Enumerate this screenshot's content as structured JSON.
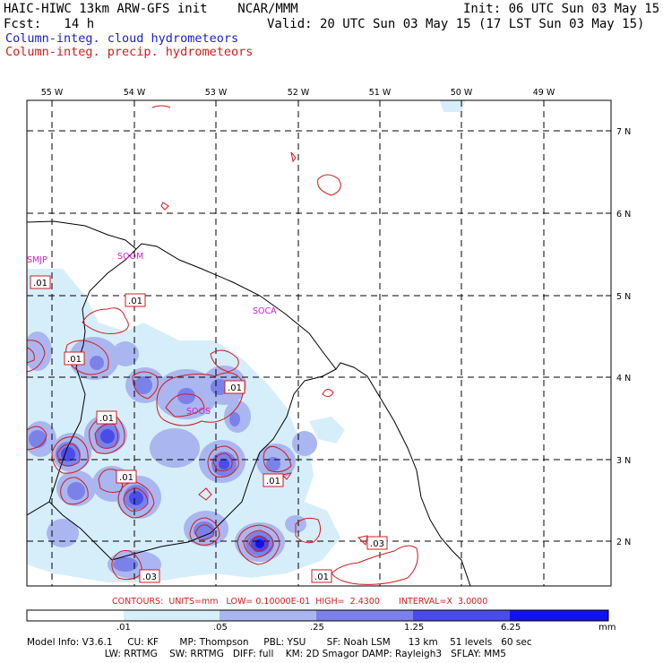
{
  "header": {
    "title": "HAIC-HIWC 13km ARW-GFS init    NCAR/MMM",
    "init": "Init: 06 UTC Sun 03 May 15",
    "fcst": "Fcst:   14 h",
    "valid": "Valid: 20 UTC Sun 03 May 15 (17 LST Sun 03 May 15)",
    "field1": "Column-integ. cloud hydrometeors",
    "field2": "Column-integ. precip. hydrometeors"
  },
  "axes": {
    "lon_labels": [
      "55 W",
      "54 W",
      "53 W",
      "52 W",
      "51 W",
      "50 W",
      "49 W"
    ],
    "lat_labels": [
      "7 N",
      "6 N",
      "5 N",
      "4 N",
      "3 N",
      "2 N"
    ]
  },
  "stations": [
    "SMJP",
    "SOOM",
    "SOCA",
    "SOOS"
  ],
  "contour_labels": [
    ".01",
    ".01",
    ".01",
    ".01",
    ".01",
    ".01",
    ".01",
    ".01",
    ".03",
    ".03"
  ],
  "contours_info": "CONTOURS:  UNITS=mm   LOW= 0.10000E-01  HIGH=  2.4300       INTERVAL=X  3.0000",
  "colorbar": {
    "labels": [
      ".01",
      ".05",
      ".25",
      "1.25",
      "6.25"
    ],
    "units": "mm",
    "colors": [
      "#ffffff",
      "#d6eefa",
      "#aab6f0",
      "#7a82ea",
      "#4a4ce8",
      "#1212ee"
    ]
  },
  "footer": {
    "line1": "Model Info: V3.6.1     CU: KF       MP: Thompson     PBL: YSU       SF: Noah LSM      13 km    51 levels   60 sec",
    "line2": "                          LW: RRTMG    SW: RRTMG   DIFF: full    KM: 2D Smagor DAMP: Rayleigh3   SFLAY: MM5"
  }
}
